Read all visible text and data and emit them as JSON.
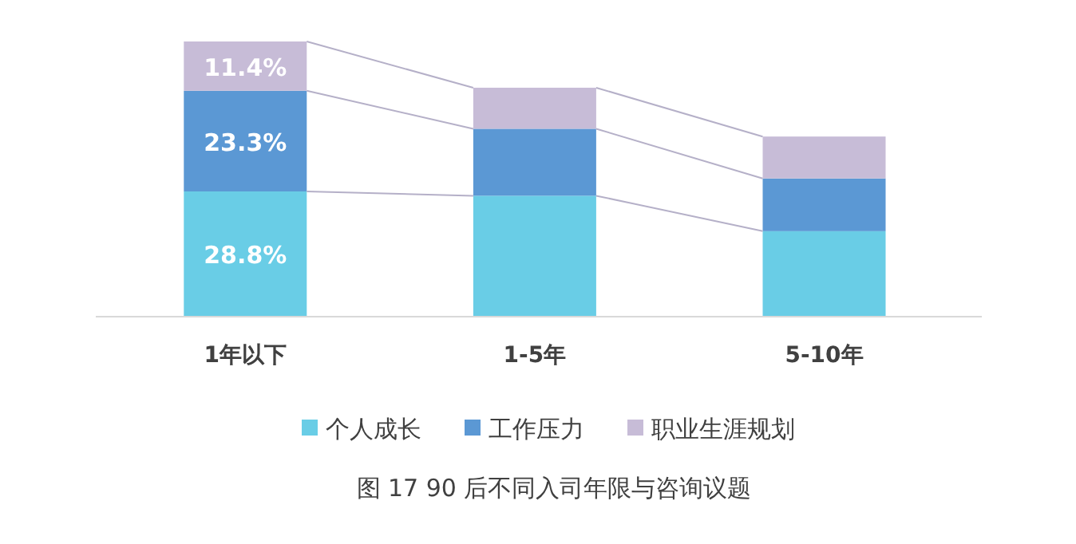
{
  "chart_data": {
    "type": "bar",
    "stacked": true,
    "title": "图 17 90 后不同入司年限与咨询议题",
    "categories": [
      "1年以下",
      "1-5年",
      "5-10年"
    ],
    "series": [
      {
        "name": "个人成长",
        "color": "#69cde6",
        "values": [
          28.8,
          27.8,
          19.6
        ],
        "value_labels": [
          "28.8%",
          null,
          null
        ]
      },
      {
        "name": "工作压力",
        "color": "#5b98d4",
        "values": [
          23.3,
          15.5,
          12.2
        ],
        "value_labels": [
          "23.3%",
          null,
          null
        ]
      },
      {
        "name": "职业生涯规划",
        "color": "#c7bcd7",
        "values": [
          11.4,
          9.5,
          9.7
        ],
        "value_labels": [
          "11.4%",
          null,
          null
        ]
      }
    ],
    "legend": "bottom"
  }
}
